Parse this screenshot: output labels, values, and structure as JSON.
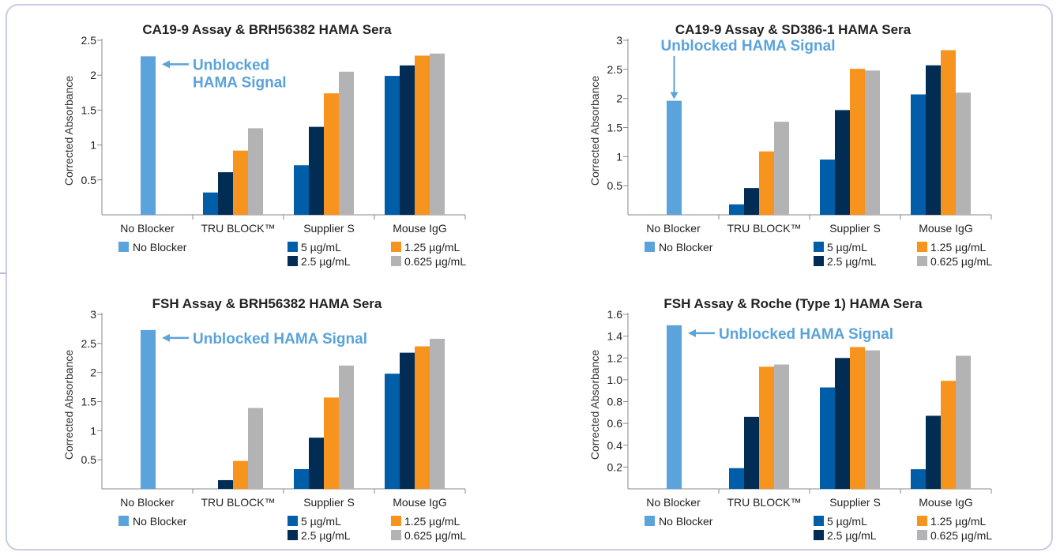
{
  "colors": {
    "no_blocker": "#5aa3db",
    "c5": "#005ea8",
    "c2_5": "#012d55",
    "c1_25": "#f7941d",
    "c0_625": "#b3b3b5",
    "annotation": "#5aa3db",
    "axis": "#888888",
    "text": "#222222"
  },
  "chart_data": [
    {
      "type": "bar",
      "title": "CA19-9 Assay & BRH56382 HAMA Sera",
      "ylabel": "Corrected Absorbance",
      "xlabel": "",
      "ylim": [
        0,
        2.5
      ],
      "yticks": [
        "0.5",
        "1",
        "1.5",
        "2",
        "2.5"
      ],
      "categories": [
        "No Blocker",
        "TRU BLOCK™",
        "Supplier S",
        "Mouse IgG"
      ],
      "no_blocker_value": 2.27,
      "series": [
        {
          "name": "5 µg/mL",
          "values": [
            null,
            0.32,
            0.71,
            1.99
          ]
        },
        {
          "name": "2.5 µg/mL",
          "values": [
            null,
            0.61,
            1.26,
            2.14
          ]
        },
        {
          "name": "1.25 µg/mL",
          "values": [
            null,
            0.92,
            1.74,
            2.28
          ]
        },
        {
          "name": "0.625 µg/mL",
          "values": [
            null,
            1.24,
            2.05,
            2.31
          ]
        }
      ],
      "annotation": {
        "lines": [
          "Unblocked",
          "HAMA Signal"
        ],
        "arrow": "left"
      },
      "legend": {
        "no_blocker": "No Blocker",
        "items": [
          "5 µg/mL",
          "2.5 µg/mL",
          "1.25 µg/mL",
          "0.625 µg/mL"
        ]
      }
    },
    {
      "type": "bar",
      "title": "CA19-9 Assay & SD386-1 HAMA Sera",
      "ylabel": "Corrected Absorbance",
      "xlabel": "",
      "ylim": [
        0,
        3
      ],
      "yticks": [
        "0.5",
        "1",
        "1.5",
        "2",
        "2.5",
        "3"
      ],
      "categories": [
        "No Blocker",
        "TRU BLOCK™",
        "Supplier S",
        "Mouse IgG"
      ],
      "no_blocker_value": 1.96,
      "series": [
        {
          "name": "5 µg/mL",
          "values": [
            null,
            0.18,
            0.95,
            2.07
          ]
        },
        {
          "name": "2.5 µg/mL",
          "values": [
            null,
            0.46,
            1.8,
            2.57
          ]
        },
        {
          "name": "1.25 µg/mL",
          "values": [
            null,
            1.09,
            2.51,
            2.83
          ]
        },
        {
          "name": "0.625 µg/mL",
          "values": [
            null,
            1.6,
            2.48,
            2.1
          ]
        }
      ],
      "annotation": {
        "lines": [
          "Unblocked HAMA Signal"
        ],
        "arrow": "down"
      },
      "legend": {
        "no_blocker": "No Blocker",
        "items": [
          "5 µg/mL",
          "2.5 µg/mL",
          "1.25 µg/mL",
          "0.625 µg/mL"
        ]
      }
    },
    {
      "type": "bar",
      "title": "FSH Assay & BRH56382 HAMA Sera",
      "ylabel": "Corrected Absorbance",
      "xlabel": "",
      "ylim": [
        0,
        3
      ],
      "yticks": [
        "0.5",
        "1",
        "1.5",
        "2",
        "2.5",
        "3"
      ],
      "categories": [
        "No Blocker",
        "TRU BLOCK™",
        "Supplier S",
        "Mouse IgG"
      ],
      "no_blocker_value": 2.73,
      "series": [
        {
          "name": "5 µg/mL",
          "values": [
            null,
            0.0,
            0.34,
            1.98
          ]
        },
        {
          "name": "2.5 µg/mL",
          "values": [
            null,
            0.15,
            0.88,
            2.34
          ]
        },
        {
          "name": "1.25 µg/mL",
          "values": [
            null,
            0.48,
            1.57,
            2.45
          ]
        },
        {
          "name": "0.625 µg/mL",
          "values": [
            null,
            1.39,
            2.12,
            2.58
          ]
        }
      ],
      "annotation": {
        "lines": [
          "Unblocked HAMA Signal"
        ],
        "arrow": "left"
      },
      "legend": {
        "no_blocker": "No Blocker",
        "items": [
          "5 µg/mL",
          "2.5 µg/mL",
          "1.25 µg/mL",
          "0.625 µg/mL"
        ]
      }
    },
    {
      "type": "bar",
      "title": "FSH Assay & Roche (Type 1) HAMA Sera",
      "ylabel": "Corrected Absorbance",
      "xlabel": "",
      "ylim": [
        0,
        1.6
      ],
      "yticks": [
        "0.2",
        "0.4",
        "0.6",
        "0.8",
        "1.0",
        "1.2",
        "1.4",
        "1.6"
      ],
      "categories": [
        "No Blocker",
        "TRU BLOCK™",
        "Supplier S",
        "Mouse IgG"
      ],
      "no_blocker_value": 1.5,
      "series": [
        {
          "name": "5 µg/mL",
          "values": [
            null,
            0.19,
            0.93,
            0.18
          ]
        },
        {
          "name": "2.5 µg/mL",
          "values": [
            null,
            0.66,
            1.2,
            0.67
          ]
        },
        {
          "name": "1.25 µg/mL",
          "values": [
            null,
            1.12,
            1.3,
            0.99
          ]
        },
        {
          "name": "0.625 µg/mL",
          "values": [
            null,
            1.14,
            1.27,
            1.22
          ]
        }
      ],
      "annotation": {
        "lines": [
          "Unblocked HAMA Signal"
        ],
        "arrow": "left"
      },
      "legend": {
        "no_blocker": "No Blocker",
        "items": [
          "5 µg/mL",
          "2.5 µg/mL",
          "1.25 µg/mL",
          "0.625 µg/mL"
        ]
      }
    }
  ]
}
